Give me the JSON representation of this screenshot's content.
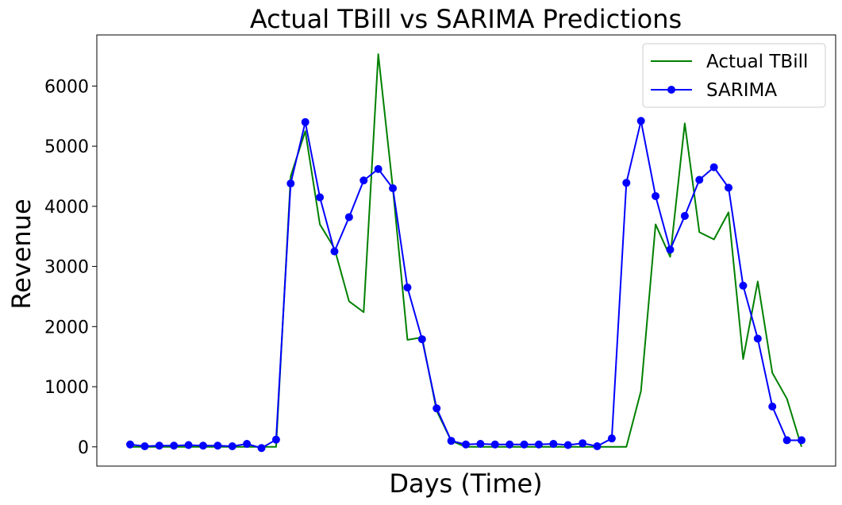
{
  "chart_data": {
    "type": "line",
    "title": "Actual TBill vs SARIMA Predictions",
    "xlabel": "Days (Time)",
    "ylabel": "Revenue",
    "ylim": [
      -320,
      6850
    ],
    "yticks": [
      0,
      1000,
      2000,
      3000,
      4000,
      5000,
      6000
    ],
    "ytick_labels": [
      "0",
      "1000",
      "2000",
      "3000",
      "4000",
      "5000",
      "6000"
    ],
    "x_tick_labels": false,
    "grid": false,
    "legend_position": "top-right",
    "x": [
      0,
      1,
      2,
      3,
      4,
      5,
      6,
      7,
      8,
      9,
      10,
      11,
      12,
      13,
      14,
      15,
      16,
      17,
      18,
      19,
      20,
      21,
      22,
      23,
      24,
      25,
      26,
      27,
      28,
      29,
      30,
      31,
      32,
      33,
      34,
      35,
      36,
      37,
      38,
      39,
      40,
      41,
      42,
      43,
      44,
      45,
      46
    ],
    "series": [
      {
        "name": "Actual TBill",
        "color": "#008000",
        "marker": "none",
        "values": [
          0,
          0,
          0,
          0,
          0,
          0,
          0,
          0,
          0,
          0,
          0,
          4500,
          5250,
          3700,
          3300,
          2420,
          2240,
          6530,
          4300,
          1780,
          1820,
          600,
          100,
          0,
          0,
          0,
          0,
          0,
          0,
          0,
          0,
          0,
          0,
          0,
          0,
          930,
          3700,
          3160,
          5380,
          3570,
          3450,
          3900,
          1460,
          2750,
          1230,
          800,
          0
        ]
      },
      {
        "name": "SARIMA",
        "color": "#0000ff",
        "marker": "circle",
        "values": [
          40,
          10,
          20,
          20,
          30,
          20,
          20,
          10,
          50,
          -20,
          120,
          4380,
          5400,
          4150,
          3250,
          3820,
          4430,
          4620,
          4300,
          2650,
          1790,
          640,
          100,
          40,
          50,
          40,
          40,
          40,
          40,
          50,
          30,
          60,
          10,
          140,
          4390,
          5420,
          4170,
          3280,
          3840,
          4440,
          4650,
          4310,
          2680,
          1800,
          670,
          110,
          110
        ]
      }
    ]
  }
}
